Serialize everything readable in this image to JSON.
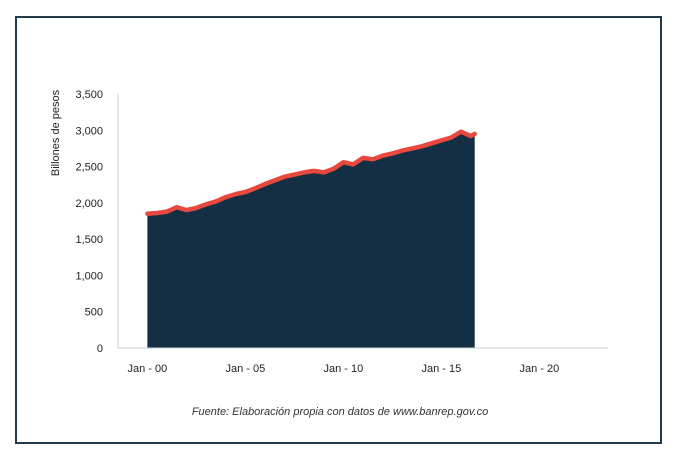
{
  "chart_data": {
    "type": "area",
    "title": "",
    "xlabel": "",
    "ylabel": "Billones de pesos",
    "source": "Fuente: Elaboración propia con datos de www.banrep.gov.co",
    "ylim": [
      0,
      3500
    ],
    "yticks": [
      "0",
      "500",
      "1,000",
      "1,500",
      "2,000",
      "2,500",
      "3,000",
      "3,500"
    ],
    "ytick_values": [
      0,
      500,
      1000,
      1500,
      2000,
      2500,
      3000,
      3500
    ],
    "xlim": [
      1998.5,
      2023.5
    ],
    "xticks": [
      "Jan - 00",
      "Jan - 05",
      "Jan - 10",
      "Jan - 15",
      "Jan - 20"
    ],
    "xtick_values": [
      2000,
      2005,
      2010,
      2015,
      2020
    ],
    "grid": false,
    "colors": {
      "fill": "#142f43",
      "line": "#e8483d",
      "axis": "#cccccc"
    },
    "series": [
      {
        "x": [
          2000.0,
          2000.5,
          2001.0,
          2001.5,
          2002.0,
          2002.5,
          2003.0,
          2003.5,
          2004.0,
          2004.5,
          2005.0,
          2005.5,
          2006.0,
          2006.5,
          2007.0,
          2007.5,
          2008.0,
          2008.5,
          2009.0,
          2009.5,
          2010.0,
          2010.5,
          2011.0,
          2011.5,
          2012.0,
          2012.5,
          2013.0,
          2013.5,
          2014.0,
          2014.5,
          2015.0,
          2015.5,
          2016.0,
          2016.5,
          2016.7
        ],
        "values": [
          1850,
          1860,
          1880,
          1940,
          1900,
          1930,
          1980,
          2020,
          2080,
          2120,
          2150,
          2200,
          2260,
          2310,
          2360,
          2390,
          2420,
          2440,
          2420,
          2470,
          2560,
          2530,
          2620,
          2600,
          2650,
          2680,
          2720,
          2750,
          2780,
          2820,
          2860,
          2900,
          2980,
          2920,
          2950
        ]
      }
    ]
  }
}
